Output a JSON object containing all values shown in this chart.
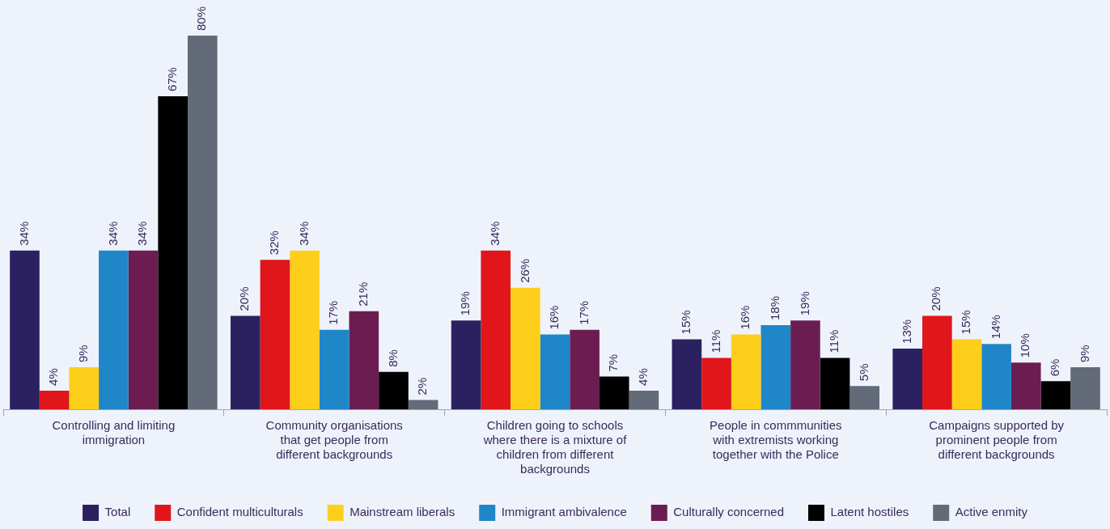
{
  "chart_data": {
    "type": "bar",
    "categories": [
      "Controlling and limiting immigration",
      "Community organisations that get people from different backgrounds",
      "Children going to schools where there is a mixture of children from different backgrounds",
      "People in commmunities with extremists working together with the Police",
      "Campaigns supported by prominent people from different backgrounds"
    ],
    "series": [
      {
        "name": "Total",
        "color": "#2b2160",
        "values": [
          34,
          20,
          19,
          15,
          13
        ],
        "value_labels": [
          "34%",
          "20%",
          "19%",
          "15%",
          "13%"
        ]
      },
      {
        "name": "Confident multiculturals",
        "color": "#e0161b",
        "values": [
          4,
          32,
          34,
          11,
          20
        ],
        "value_labels": [
          "4%",
          "32%",
          "34%",
          "11%",
          "20%"
        ]
      },
      {
        "name": "Mainstream liberals",
        "color": "#fdcf1b",
        "values": [
          9,
          34,
          26,
          16,
          15
        ],
        "value_labels": [
          "9%",
          "34%",
          "26%",
          "16%",
          "15%"
        ]
      },
      {
        "name": "Immigrant ambivalence",
        "color": "#1f86c8",
        "values": [
          34,
          17,
          16,
          18,
          14
        ],
        "value_labels": [
          "34%",
          "17%",
          "16%",
          "18%",
          "14%"
        ]
      },
      {
        "name": "Culturally concerned",
        "color": "#6b1d52",
        "values": [
          34,
          21,
          17,
          19,
          10
        ],
        "value_labels": [
          "34%",
          "21%",
          "17%",
          "19%",
          "10%"
        ]
      },
      {
        "name": "Latent hostiles",
        "color": "#000000",
        "values": [
          67,
          8,
          7,
          11,
          6
        ],
        "value_labels": [
          "67%",
          "8%",
          "7%",
          "11%",
          "6%"
        ]
      },
      {
        "name": "Active enmity",
        "color": "#636b78",
        "values": [
          80,
          2,
          4,
          5,
          9
        ],
        "value_labels": [
          "80%",
          "2%",
          "4%",
          "5%",
          "9%"
        ]
      }
    ],
    "grid": false,
    "legend": "bottom"
  }
}
